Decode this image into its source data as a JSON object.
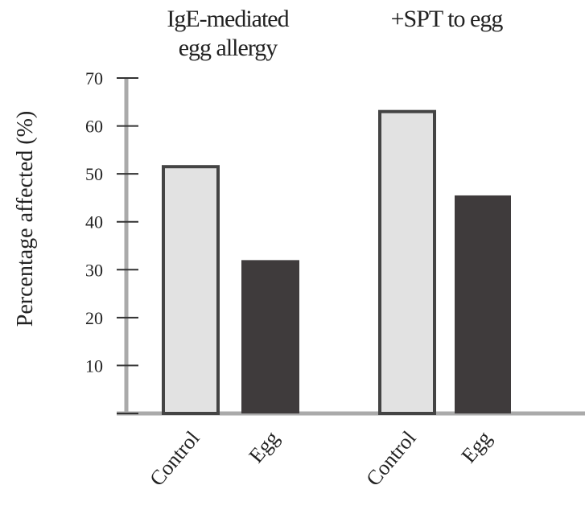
{
  "chart_data": {
    "type": "bar",
    "ylabel": "Percentage affected (%)",
    "groups": [
      "IgE-mediated egg allergy",
      "+SPT to egg"
    ],
    "categories": [
      "Control",
      "Egg",
      "Control",
      "Egg"
    ],
    "values": [
      51.5,
      32,
      63,
      45.5
    ],
    "colors": [
      "#e2e2e2",
      "#3f3b3c",
      "#e2e2e2",
      "#3f3b3c"
    ],
    "ylim": [
      0,
      70
    ],
    "yticks": [
      10,
      20,
      30,
      40,
      50,
      60,
      70
    ]
  }
}
